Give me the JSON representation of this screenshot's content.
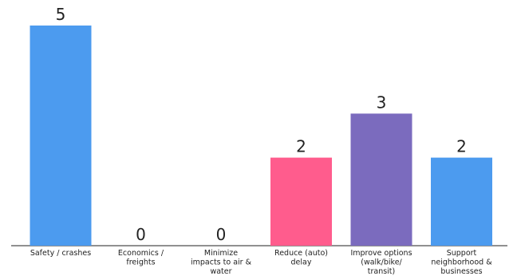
{
  "chart_data": {
    "type": "bar",
    "title": "",
    "xlabel": "",
    "ylabel": "",
    "ylim": [
      0,
      5
    ],
    "grid": false,
    "categories": [
      "Safety / crashes",
      "Economics / freights",
      "Minimize impacts to air & water",
      "Reduce (auto) delay",
      "Improve options (walk/bike/ transit)",
      "Support neighborhood & businesses"
    ],
    "category_lines": [
      [
        "Safety / crashes"
      ],
      [
        "Economics /",
        "freights"
      ],
      [
        "Minimize",
        "impacts to air &",
        "water"
      ],
      [
        "Reduce (auto)",
        "delay"
      ],
      [
        "Improve options",
        "(walk/bike/",
        "transit)"
      ],
      [
        "Support",
        "neighborhood &",
        "businesses"
      ]
    ],
    "values": [
      5,
      0,
      0,
      2,
      3,
      2
    ],
    "colors": [
      "#4C9BEF",
      "#4C9BEF",
      "#4C9BEF",
      "#FF5C8D",
      "#7B6BBE",
      "#4C9BEF"
    ]
  }
}
